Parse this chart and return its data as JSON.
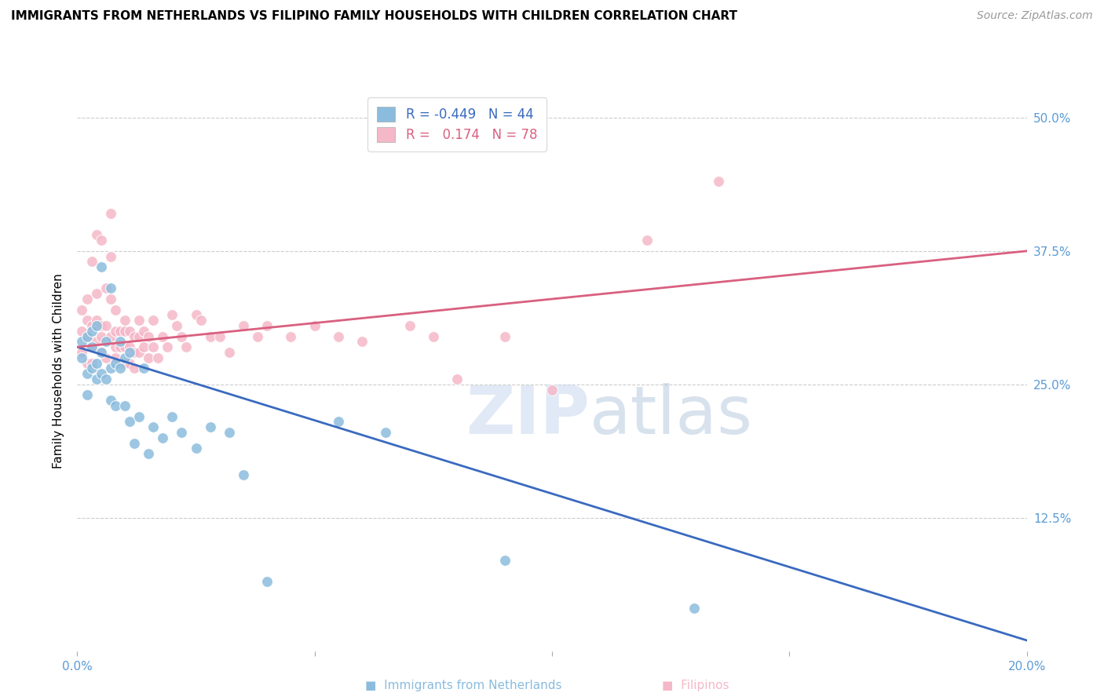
{
  "title": "IMMIGRANTS FROM NETHERLANDS VS FILIPINO FAMILY HOUSEHOLDS WITH CHILDREN CORRELATION CHART",
  "source": "Source: ZipAtlas.com",
  "ylabel": "Family Households with Children",
  "ytick_vals": [
    0.125,
    0.25,
    0.375,
    0.5
  ],
  "ytick_labels": [
    "12.5%",
    "25.0%",
    "37.5%",
    "50.0%"
  ],
  "xlim": [
    0.0,
    0.2
  ],
  "ylim": [
    0.0,
    0.525
  ],
  "legend_blue_r": "-0.449",
  "legend_blue_n": "44",
  "legend_pink_r": "0.174",
  "legend_pink_n": "78",
  "blue_color": "#8bbcdd",
  "pink_color": "#f5b8c8",
  "blue_line_color": "#3a6abf",
  "pink_line_color": "#d96080",
  "blue_line_x0": 0.0,
  "blue_line_y0": 0.285,
  "blue_line_x1": 0.2,
  "blue_line_y1": 0.01,
  "pink_line_x0": 0.0,
  "pink_line_y0": 0.285,
  "pink_line_x1": 0.2,
  "pink_line_y1": 0.375,
  "blue_x": [
    0.001,
    0.001,
    0.002,
    0.002,
    0.002,
    0.003,
    0.003,
    0.003,
    0.004,
    0.004,
    0.004,
    0.005,
    0.005,
    0.005,
    0.006,
    0.006,
    0.007,
    0.007,
    0.007,
    0.008,
    0.008,
    0.009,
    0.009,
    0.01,
    0.01,
    0.011,
    0.011,
    0.012,
    0.013,
    0.014,
    0.015,
    0.016,
    0.018,
    0.02,
    0.022,
    0.025,
    0.028,
    0.032,
    0.035,
    0.04,
    0.055,
    0.065,
    0.09,
    0.13
  ],
  "blue_y": [
    0.29,
    0.275,
    0.295,
    0.26,
    0.24,
    0.3,
    0.285,
    0.265,
    0.305,
    0.27,
    0.255,
    0.36,
    0.28,
    0.26,
    0.29,
    0.255,
    0.34,
    0.265,
    0.235,
    0.27,
    0.23,
    0.29,
    0.265,
    0.275,
    0.23,
    0.28,
    0.215,
    0.195,
    0.22,
    0.265,
    0.185,
    0.21,
    0.2,
    0.22,
    0.205,
    0.19,
    0.21,
    0.205,
    0.165,
    0.065,
    0.215,
    0.205,
    0.085,
    0.04
  ],
  "pink_x": [
    0.001,
    0.001,
    0.001,
    0.002,
    0.002,
    0.002,
    0.002,
    0.003,
    0.003,
    0.003,
    0.003,
    0.004,
    0.004,
    0.004,
    0.004,
    0.005,
    0.005,
    0.005,
    0.005,
    0.006,
    0.006,
    0.006,
    0.007,
    0.007,
    0.007,
    0.007,
    0.008,
    0.008,
    0.008,
    0.008,
    0.009,
    0.009,
    0.009,
    0.01,
    0.01,
    0.01,
    0.01,
    0.011,
    0.011,
    0.011,
    0.012,
    0.012,
    0.012,
    0.013,
    0.013,
    0.013,
    0.014,
    0.014,
    0.015,
    0.015,
    0.016,
    0.016,
    0.017,
    0.018,
    0.019,
    0.02,
    0.021,
    0.022,
    0.023,
    0.025,
    0.026,
    0.028,
    0.03,
    0.032,
    0.035,
    0.038,
    0.04,
    0.045,
    0.05,
    0.055,
    0.06,
    0.07,
    0.075,
    0.08,
    0.09,
    0.1,
    0.12,
    0.135
  ],
  "pink_y": [
    0.3,
    0.28,
    0.32,
    0.27,
    0.31,
    0.295,
    0.33,
    0.285,
    0.305,
    0.27,
    0.365,
    0.39,
    0.335,
    0.31,
    0.29,
    0.305,
    0.295,
    0.28,
    0.385,
    0.34,
    0.305,
    0.275,
    0.41,
    0.37,
    0.33,
    0.295,
    0.32,
    0.3,
    0.285,
    0.275,
    0.3,
    0.285,
    0.27,
    0.31,
    0.3,
    0.285,
    0.27,
    0.3,
    0.285,
    0.27,
    0.295,
    0.28,
    0.265,
    0.31,
    0.295,
    0.28,
    0.3,
    0.285,
    0.295,
    0.275,
    0.31,
    0.285,
    0.275,
    0.295,
    0.285,
    0.315,
    0.305,
    0.295,
    0.285,
    0.315,
    0.31,
    0.295,
    0.295,
    0.28,
    0.305,
    0.295,
    0.305,
    0.295,
    0.305,
    0.295,
    0.29,
    0.305,
    0.295,
    0.255,
    0.295,
    0.245,
    0.385,
    0.44
  ],
  "grid_color": "#cccccc",
  "watermark_color": "#c8d8ed",
  "watermark_alpha": 0.55,
  "title_fontsize": 11,
  "axis_label_fontsize": 11,
  "tick_fontsize": 11,
  "legend_fontsize": 12,
  "scatter_size": 100,
  "scatter_alpha": 0.85,
  "scatter_lw": 0.8
}
